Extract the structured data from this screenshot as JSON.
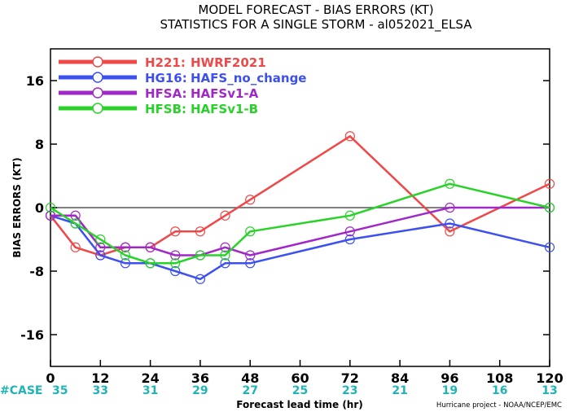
{
  "chart_data": {
    "type": "line",
    "title": "MODEL FORECAST - BIAS ERRORS (KT)",
    "subtitle": "STATISTICS FOR A SINGLE STORM - al052021_ELSA",
    "xlabel": "Forecast lead time (hr)",
    "ylabel": "BIAS ERRORS (KT)",
    "xlim": [
      0,
      120
    ],
    "ylim": [
      -20,
      20
    ],
    "x_ticks": [
      0,
      12,
      24,
      36,
      48,
      60,
      72,
      84,
      96,
      108,
      120
    ],
    "y_ticks": [
      -16,
      -8,
      0,
      8,
      16
    ],
    "zero_line": true,
    "grid": false,
    "legend_placement": "top-left",
    "case_label": "#CASE",
    "case_counts": [
      35,
      33,
      31,
      29,
      27,
      25,
      23,
      21,
      19,
      16,
      13
    ],
    "credit": "Hurricane project - NOAA/NCEP/EMC",
    "series": [
      {
        "legend_code": "H221:",
        "legend_desc": "HWRF2021",
        "color": "#f04848",
        "x": [
          0,
          6,
          12,
          18,
          24,
          30,
          36,
          42,
          48,
          72,
          96,
          120
        ],
        "values": [
          -1,
          -5,
          -6,
          -5,
          -5,
          -3,
          -3,
          -1,
          1,
          9,
          -3,
          3
        ]
      },
      {
        "legend_code": "HG16:",
        "legend_desc": "HAFS_no_change",
        "color": "#3c50f0",
        "x": [
          0,
          6,
          12,
          18,
          24,
          30,
          36,
          42,
          48,
          72,
          96,
          120
        ],
        "values": [
          -1,
          -2,
          -6,
          -7,
          -7,
          -8,
          -9,
          -7,
          -7,
          -4,
          -2,
          -5
        ]
      },
      {
        "legend_code": "HFSA:",
        "legend_desc": "HAFSv1-A",
        "color": "#a028c8",
        "x": [
          0,
          6,
          12,
          18,
          24,
          30,
          36,
          42,
          48,
          72,
          96,
          120
        ],
        "values": [
          -1,
          -1,
          -5,
          -5,
          -5,
          -6,
          -6,
          -5,
          -6,
          -3,
          0,
          0
        ]
      },
      {
        "legend_code": "HFSB:",
        "legend_desc": "HAFSv1-B",
        "color": "#28d228",
        "x": [
          0,
          6,
          12,
          18,
          24,
          30,
          36,
          42,
          48,
          72,
          96,
          120
        ],
        "values": [
          0,
          -2,
          -4,
          -6,
          -7,
          -7,
          -6,
          -6,
          -3,
          -1,
          3,
          0
        ]
      }
    ]
  }
}
